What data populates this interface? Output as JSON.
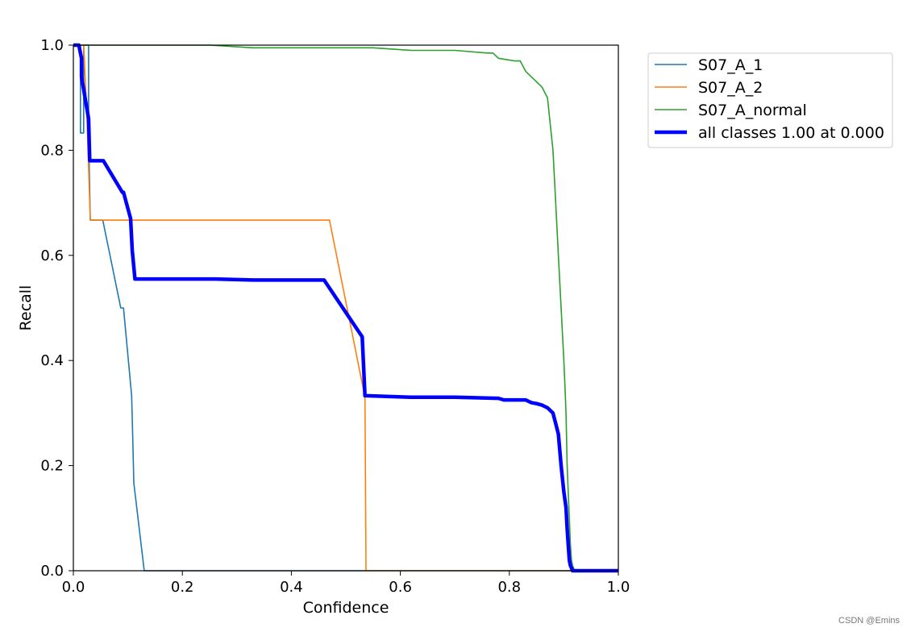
{
  "chart_data": {
    "type": "line",
    "title": "",
    "xlabel": "Confidence",
    "ylabel": "Recall",
    "xlim": [
      0,
      1
    ],
    "ylim": [
      0,
      1
    ],
    "xticks": [
      "0.0",
      "0.2",
      "0.4",
      "0.6",
      "0.8",
      "1.0"
    ],
    "yticks": [
      "0.0",
      "0.2",
      "0.4",
      "0.6",
      "0.8",
      "1.0"
    ],
    "grid": false,
    "legend_position": "outside-top-right",
    "series": [
      {
        "name": "S07_A_1",
        "color": "#1f77b4",
        "line_width": "thin",
        "x": [
          0.0,
          0.013,
          0.013,
          0.019,
          0.019,
          0.028,
          0.028,
          0.031,
          0.031,
          0.054,
          0.087,
          0.089,
          0.092,
          0.107,
          0.109,
          0.111,
          0.13,
          0.131,
          1.0
        ],
        "y": [
          1.0,
          1.0,
          0.833,
          0.833,
          1.0,
          1.0,
          0.833,
          0.667,
          0.667,
          0.667,
          0.5,
          0.5,
          0.5,
          0.333,
          0.25,
          0.167,
          0.0,
          0.0,
          0.0
        ]
      },
      {
        "name": "S07_A_2",
        "color": "#ff7f0e",
        "line_width": "thin",
        "x": [
          0.0,
          0.019,
          0.025,
          0.031,
          0.032,
          0.47,
          0.535,
          0.535,
          0.537,
          1.0
        ],
        "y": [
          1.0,
          1.0,
          0.86,
          0.667,
          0.667,
          0.667,
          0.33,
          0.33,
          0.0,
          0.0
        ],
        "fill_color": "#ff7f0e"
      },
      {
        "name": "S07_A_normal",
        "color": "#2ca02c",
        "line_width": "thin",
        "x": [
          0.0,
          0.25,
          0.33,
          0.55,
          0.62,
          0.7,
          0.76,
          0.77,
          0.78,
          0.81,
          0.82,
          0.83,
          0.84,
          0.85,
          0.86,
          0.87,
          0.88,
          0.885,
          0.89,
          0.895,
          0.9,
          0.902,
          0.904,
          0.906,
          0.908,
          0.91,
          0.912,
          0.914,
          0.916,
          0.92,
          1.0
        ],
        "y": [
          1.0,
          1.0,
          0.995,
          0.995,
          0.99,
          0.99,
          0.985,
          0.985,
          0.975,
          0.97,
          0.97,
          0.95,
          0.94,
          0.93,
          0.92,
          0.9,
          0.8,
          0.7,
          0.6,
          0.5,
          0.4,
          0.35,
          0.3,
          0.2,
          0.15,
          0.1,
          0.05,
          0.02,
          0.01,
          0.0,
          0.0
        ]
      },
      {
        "name": "all classes 1.00 at 0.000",
        "color": "#0000ff",
        "line_width": "thick",
        "x": [
          0.0,
          0.01,
          0.015,
          0.015,
          0.028,
          0.03,
          0.032,
          0.055,
          0.09,
          0.092,
          0.105,
          0.108,
          0.113,
          0.132,
          0.15,
          0.26,
          0.33,
          0.46,
          0.53,
          0.535,
          0.537,
          0.62,
          0.7,
          0.78,
          0.79,
          0.83,
          0.84,
          0.85,
          0.86,
          0.87,
          0.88,
          0.885,
          0.89,
          0.895,
          0.9,
          0.904,
          0.906,
          0.908,
          0.91,
          0.912,
          0.914,
          0.916,
          1.0
        ],
        "y": [
          1.0,
          1.0,
          0.975,
          0.94,
          0.86,
          0.78,
          0.78,
          0.78,
          0.72,
          0.72,
          0.67,
          0.61,
          0.555,
          0.555,
          0.555,
          0.555,
          0.553,
          0.553,
          0.445,
          0.333,
          0.333,
          0.33,
          0.33,
          0.328,
          0.325,
          0.325,
          0.32,
          0.318,
          0.315,
          0.31,
          0.3,
          0.28,
          0.26,
          0.2,
          0.15,
          0.12,
          0.08,
          0.05,
          0.02,
          0.01,
          0.005,
          0.0,
          0.0
        ]
      }
    ]
  },
  "watermark": "CSDN @Emins"
}
